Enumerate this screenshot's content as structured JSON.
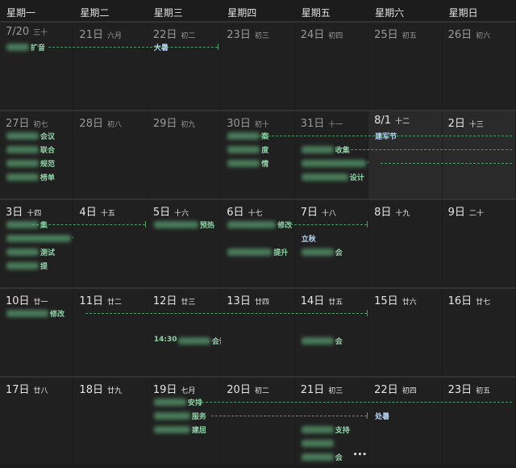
{
  "weekdays": [
    "星期一",
    "星期二",
    "星期三",
    "星期四",
    "星期五",
    "星期六",
    "星期日"
  ],
  "weeks": [
    {
      "days": [
        {
          "date": "7/20",
          "lunar": "三十",
          "muted": true,
          "events": [
            {
              "text": "扩音",
              "redacted": true
            }
          ]
        },
        {
          "date": "21日",
          "lunar": "六月",
          "muted": true,
          "events": []
        },
        {
          "date": "22日",
          "lunar": "初二",
          "muted": true,
          "events": [
            {
              "text": "大暑",
              "holiday": true
            }
          ]
        },
        {
          "date": "23日",
          "lunar": "初三",
          "muted": true,
          "events": []
        },
        {
          "date": "24日",
          "lunar": "初四",
          "muted": true,
          "events": []
        },
        {
          "date": "25日",
          "lunar": "初五",
          "muted": true,
          "events": []
        },
        {
          "date": "26日",
          "lunar": "初六",
          "muted": true,
          "events": []
        }
      ]
    },
    {
      "days": [
        {
          "date": "27日",
          "lunar": "初七",
          "muted": true,
          "events": [
            {
              "text": "会议",
              "redacted": true
            },
            {
              "text": "联合",
              "redacted": true
            },
            {
              "text": "规范",
              "redacted": true
            },
            {
              "text": "榜单",
              "redacted": true
            }
          ]
        },
        {
          "date": "28日",
          "lunar": "初八",
          "muted": true,
          "events": []
        },
        {
          "date": "29日",
          "lunar": "初九",
          "muted": true,
          "events": []
        },
        {
          "date": "30日",
          "lunar": "初十",
          "muted": true,
          "events": [
            {
              "text": "案",
              "redacted": true
            },
            {
              "text": "度",
              "redacted": true
            },
            {
              "text": "情",
              "redacted": true
            }
          ]
        },
        {
          "date": "31日",
          "lunar": "十一",
          "muted": true,
          "events": [
            null,
            {
              "text": "收集",
              "redacted": true
            },
            {
              "text": "设计",
              "redacted": true
            },
            {
              "text": "设计",
              "redacted": true
            }
          ]
        },
        {
          "date": "8/1",
          "lunar": "十二",
          "highlight": true,
          "events": [
            {
              "text": "建军节",
              "holiday": true
            }
          ]
        },
        {
          "date": "2日",
          "lunar": "十三",
          "highlight": true,
          "events": []
        }
      ]
    },
    {
      "days": [
        {
          "date": "3日",
          "lunar": "十四",
          "events": [
            {
              "text": "集",
              "redacted": true
            },
            {
              "text": "设计",
              "redacted": true
            },
            {
              "text": "测试",
              "redacted": true
            },
            {
              "text": "提",
              "redacted": true
            }
          ]
        },
        {
          "date": "4日",
          "lunar": "十五",
          "events": []
        },
        {
          "date": "5日",
          "lunar": "十六",
          "events": [
            {
              "text": "预热",
              "redacted": true
            }
          ]
        },
        {
          "date": "6日",
          "lunar": "十七",
          "events": [
            {
              "text": "修改",
              "redacted": true
            },
            null,
            {
              "text": "提升",
              "redacted": true
            }
          ]
        },
        {
          "date": "7日",
          "lunar": "十八",
          "events": [
            null,
            {
              "text": "立秋",
              "holiday": true
            },
            {
              "text": "会",
              "redacted": true
            }
          ]
        },
        {
          "date": "8日",
          "lunar": "十九",
          "events": []
        },
        {
          "date": "9日",
          "lunar": "二十",
          "events": []
        }
      ]
    },
    {
      "days": [
        {
          "date": "10日",
          "lunar": "廿一",
          "events": [
            {
              "text": "修改",
              "redacted": true
            }
          ]
        },
        {
          "date": "11日",
          "lunar": "廿二",
          "events": []
        },
        {
          "date": "12日",
          "lunar": "廿三",
          "events": [
            null,
            null,
            {
              "time": "14:30",
              "text": "会议",
              "redacted": true
            }
          ]
        },
        {
          "date": "13日",
          "lunar": "廿四",
          "events": []
        },
        {
          "date": "14日",
          "lunar": "廿五",
          "events": [
            null,
            null,
            {
              "text": "会",
              "redacted": true
            }
          ]
        },
        {
          "date": "15日",
          "lunar": "廿六",
          "events": []
        },
        {
          "date": "16日",
          "lunar": "廿七",
          "events": []
        }
      ]
    },
    {
      "days": [
        {
          "date": "17日",
          "lunar": "廿八",
          "events": []
        },
        {
          "date": "18日",
          "lunar": "廿九",
          "events": []
        },
        {
          "date": "19日",
          "lunar": "七月",
          "events": [
            {
              "text": "安排",
              "redacted": true
            },
            {
              "text": "服务",
              "redacted": true
            },
            {
              "text": "建屈",
              "redacted": true
            }
          ]
        },
        {
          "date": "20日",
          "lunar": "初二",
          "events": []
        },
        {
          "date": "21日",
          "lunar": "初三",
          "events": [
            null,
            null,
            {
              "text": "支持",
              "redacted": true
            },
            {
              "text": "",
              "redacted": true
            },
            {
              "text": "会",
              "redacted": true,
              "more": "•••"
            }
          ]
        },
        {
          "date": "22日",
          "lunar": "初四",
          "events": [
            null,
            {
              "text": "处暑",
              "holiday": true
            }
          ]
        },
        {
          "date": "23日",
          "lunar": "初五",
          "events": []
        }
      ]
    }
  ]
}
